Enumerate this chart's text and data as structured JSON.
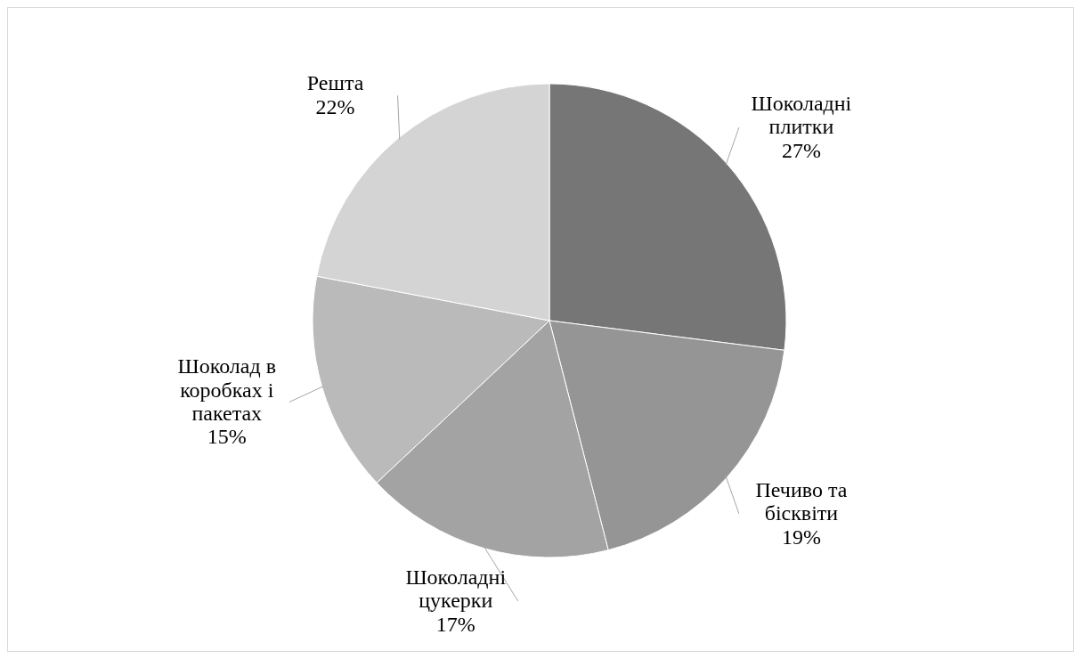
{
  "chart_data": {
    "type": "pie",
    "categories": [
      "Шоколадні плитки",
      "Печиво та бісквіти",
      "Шоколадні цукерки",
      "Шоколад в коробках і пакетах",
      "Решта"
    ],
    "values": [
      27,
      19,
      17,
      15,
      22
    ],
    "value_labels": [
      "27%",
      "19%",
      "17%",
      "15%",
      "22%"
    ],
    "colors": [
      "#767676",
      "#959595",
      "#a3a3a3",
      "#bababa",
      "#d4d4d4"
    ]
  }
}
